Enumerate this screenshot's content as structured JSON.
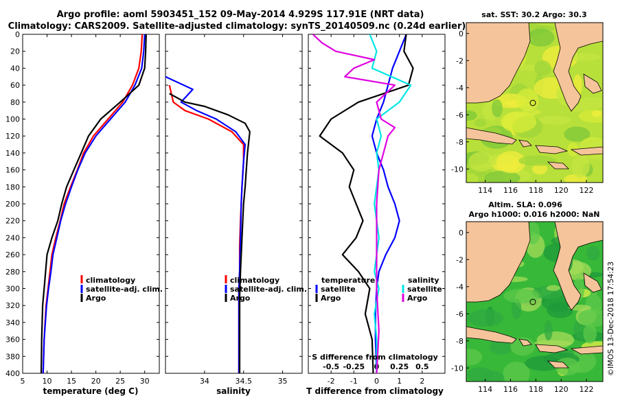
{
  "title": {
    "line1": "Argo profile: aoml 5903451_152 09-May-2014 4.929S 117.91E (NRT data)",
    "line2": "Climatology: CARS2009. Satellite-adjusted climatology: synTS_20140509.nc (0.24d earlier)"
  },
  "colors": {
    "climatology": "#ff0000",
    "satellite": "#0000ff",
    "argo": "#000000",
    "salinity_sat": "#00e5e5",
    "salinity_argo": "#e000e0",
    "land": "#f5c49a"
  },
  "chart_data": [
    {
      "type": "line",
      "name": "temperature",
      "xlabel": "temperature (deg C)",
      "xlim": [
        5,
        33
      ],
      "xticks": [
        5,
        10,
        15,
        20,
        25,
        30
      ],
      "ylim": [
        400,
        0
      ],
      "yticks": [
        0,
        20,
        40,
        60,
        80,
        100,
        120,
        140,
        160,
        180,
        200,
        220,
        240,
        260,
        280,
        300,
        320,
        340,
        360,
        380,
        400
      ],
      "series": [
        {
          "name": "climatology",
          "color": "#ff0000",
          "x": [
            29.5,
            29.3,
            28.8,
            27.5,
            25.5,
            22.5,
            19.5,
            17.5,
            16.2,
            14.8,
            13.5,
            12.7,
            11.8,
            11.0,
            10.6,
            10.2,
            9.8,
            9.4,
            9.2
          ],
          "y": [
            0,
            20,
            40,
            60,
            80,
            100,
            120,
            140,
            160,
            180,
            200,
            220,
            240,
            260,
            280,
            300,
            320,
            360,
            400
          ]
        },
        {
          "name": "satellite-adj. clim.",
          "color": "#0000ff",
          "x": [
            30.0,
            29.8,
            29.4,
            28.0,
            26.0,
            23.0,
            20.0,
            17.8,
            16.3,
            15.0,
            13.8,
            12.8,
            12.0,
            11.2,
            10.8,
            10.3,
            9.9,
            9.4,
            9.2
          ],
          "y": [
            0,
            20,
            40,
            60,
            80,
            100,
            120,
            140,
            160,
            180,
            200,
            220,
            240,
            260,
            280,
            300,
            320,
            360,
            400
          ]
        },
        {
          "name": "Argo",
          "color": "#000000",
          "x": [
            30.3,
            30.2,
            30.0,
            28.8,
            25.0,
            21.0,
            18.5,
            17.0,
            15.5,
            14.0,
            13.0,
            12.2,
            11.0,
            10.0,
            9.7,
            9.4,
            9.1,
            8.9,
            8.8
          ],
          "y": [
            0,
            20,
            40,
            60,
            80,
            100,
            120,
            140,
            160,
            180,
            200,
            220,
            240,
            260,
            280,
            300,
            320,
            360,
            400
          ]
        }
      ],
      "legend": [
        "climatology",
        "satellite-adj. clim.",
        "Argo"
      ],
      "legend_loc": "lower-right"
    },
    {
      "type": "line",
      "name": "salinity",
      "xlabel": "salinity",
      "xlim": [
        33.5,
        35.25
      ],
      "xticks": [
        34,
        34.5,
        35
      ],
      "xticklabels": [
        "34",
        "34.5",
        "35"
      ],
      "ylim": [
        400,
        0
      ],
      "series": [
        {
          "name": "climatology",
          "color": "#ff0000",
          "x": [
            33.55,
            33.6,
            33.75,
            34.05,
            34.35,
            34.5,
            34.5,
            34.48,
            34.47,
            34.46,
            34.45,
            34.45,
            34.44,
            34.44,
            34.44,
            34.44
          ],
          "y": [
            60,
            80,
            90,
            100,
            115,
            130,
            150,
            180,
            200,
            220,
            250,
            280,
            300,
            330,
            360,
            400
          ]
        },
        {
          "name": "satellite-adj. clim.",
          "color": "#0000ff",
          "x": [
            33.5,
            33.85,
            33.7,
            33.9,
            34.15,
            34.4,
            34.52,
            34.5,
            34.48,
            34.47,
            34.46,
            34.45,
            34.44,
            34.44,
            34.44,
            34.44
          ],
          "y": [
            50,
            65,
            80,
            90,
            100,
            115,
            130,
            150,
            180,
            200,
            240,
            280,
            300,
            330,
            360,
            400
          ]
        },
        {
          "name": "Argo",
          "color": "#000000",
          "x": [
            33.55,
            33.75,
            34.0,
            34.3,
            34.52,
            34.58,
            34.55,
            34.52,
            34.5,
            34.48,
            34.46,
            34.45,
            34.45,
            34.45
          ],
          "y": [
            70,
            80,
            85,
            95,
            105,
            115,
            140,
            180,
            200,
            240,
            280,
            310,
            350,
            400
          ]
        }
      ],
      "legend": [
        "climatology",
        "satellite-adj. clim.",
        "Argo"
      ],
      "legend_loc": "lower-right"
    },
    {
      "type": "line",
      "name": "differences",
      "xlabel": "T difference from climatology",
      "xlim": [
        -3,
        3
      ],
      "xticks": [
        -2,
        -1,
        0,
        1,
        2
      ],
      "xticklabels": [
        "-2",
        "-1",
        "0",
        "1",
        "2"
      ],
      "top_axis_label": "S difference from climatology",
      "top_ticks": [
        -0.5,
        -0.25,
        0,
        0.25,
        0.5
      ],
      "top_ticklabels": [
        "-0.5",
        "-0.25",
        "0",
        "0.25",
        "0.5"
      ],
      "top_ticks_at_T": [
        -2,
        -1,
        0,
        1,
        2
      ],
      "ylim": [
        400,
        0
      ],
      "series": [
        {
          "name": "temperature satellite",
          "color": "#0000ff",
          "x": [
            1.3,
            1.0,
            0.7,
            0.5,
            0.3,
            0.0,
            -0.2,
            0.0,
            0.3,
            0.5,
            0.8,
            1.0,
            0.8,
            0.4,
            0.1,
            0.0,
            -0.05,
            -0.05,
            0.0
          ],
          "y": [
            0,
            20,
            40,
            60,
            80,
            100,
            120,
            140,
            160,
            180,
            200,
            220,
            240,
            260,
            280,
            300,
            330,
            360,
            400
          ]
        },
        {
          "name": "temperature Argo",
          "color": "#000000",
          "x": [
            1.3,
            1.2,
            1.6,
            1.4,
            -0.8,
            -2.0,
            -2.5,
            -1.5,
            -1.0,
            -1.2,
            -0.9,
            -0.6,
            -0.9,
            -1.5,
            -0.8,
            -0.3,
            -0.5,
            -0.2,
            -0.15
          ],
          "y": [
            0,
            20,
            40,
            60,
            80,
            100,
            120,
            140,
            160,
            180,
            200,
            220,
            240,
            260,
            280,
            300,
            330,
            360,
            400
          ]
        },
        {
          "name": "salinity satellite",
          "color": "#00e5e5",
          "x": [
            -0.3,
            0.0,
            -0.2,
            1.5,
            1.0,
            0.0,
            0.2,
            0.0,
            0.1,
            -0.1,
            0.1,
            -0.1,
            0.1,
            -0.1,
            0.0,
            0.0
          ],
          "y": [
            0,
            20,
            40,
            60,
            80,
            100,
            120,
            140,
            160,
            200,
            240,
            280,
            300,
            330,
            360,
            400
          ]
        },
        {
          "name": "salinity Argo",
          "color": "#e000e0",
          "x": [
            -2.8,
            -2.4,
            -1.8,
            -0.1,
            -1.0,
            -1.4,
            0.8,
            0.0,
            0.2,
            0.8,
            0.5,
            0.1,
            0.0,
            0.0,
            0.0,
            0.1,
            0.0
          ],
          "y": [
            0,
            10,
            20,
            30,
            40,
            50,
            60,
            80,
            100,
            110,
            120,
            160,
            200,
            260,
            300,
            350,
            400
          ]
        }
      ],
      "legend_temperature": {
        "title": "temperature",
        "items": [
          "satellite",
          "Argo"
        ]
      },
      "legend_salinity": {
        "title": "salinity",
        "items": [
          "satellite",
          "Argo"
        ]
      }
    }
  ],
  "maps": {
    "sst": {
      "title": "sat. SST: 30.2 Argo: 30.3"
    },
    "sla": {
      "title_line1": "Altim. SLA: 0.096",
      "title_line2": "Argo h1000: 0.016 h2000: NaN"
    },
    "lon_ticks": [
      "114",
      "116",
      "118",
      "120",
      "122"
    ],
    "lat_ticks": [
      "0",
      "-2",
      "-4",
      "-6",
      "-8",
      "-10"
    ]
  },
  "credit": "©IMOS 13-Dec-2018 17:54:23"
}
